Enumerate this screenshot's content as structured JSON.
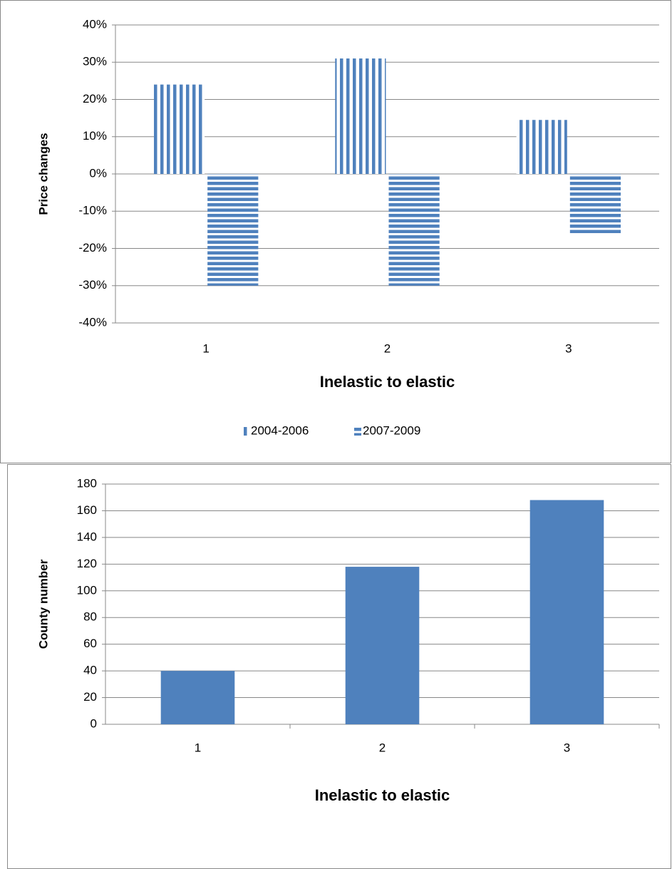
{
  "chart_data": [
    {
      "type": "bar",
      "x_label": "Inelastic to elastic",
      "y_label": "Price changes",
      "categories": [
        "1",
        "2",
        "3"
      ],
      "series": [
        {
          "name": "2004-2006",
          "color": "#4f81bd",
          "pattern": "vertical",
          "values": [
            24,
            31,
            14.5
          ]
        },
        {
          "name": "2007-2009",
          "color": "#4f81bd",
          "pattern": "horizontal",
          "values": [
            -30,
            -30,
            -16
          ]
        }
      ],
      "ylim": [
        -40,
        40
      ],
      "yticks": [
        {
          "value": -40,
          "label": "-40%"
        },
        {
          "value": -30,
          "label": "-30%"
        },
        {
          "value": -20,
          "label": "-20%"
        },
        {
          "value": -10,
          "label": "-10%"
        },
        {
          "value": 0,
          "label": "0%"
        },
        {
          "value": 10,
          "label": "10%"
        },
        {
          "value": 20,
          "label": "20%"
        },
        {
          "value": 30,
          "label": "30%"
        },
        {
          "value": 40,
          "label": "40%"
        }
      ],
      "grid": true,
      "legend": "bottom"
    },
    {
      "type": "bar",
      "x_label": "Inelastic to elastic",
      "y_label": "County number",
      "categories": [
        "1",
        "2",
        "3"
      ],
      "series": [
        {
          "color": "#4f81bd",
          "values": [
            40,
            118,
            168
          ]
        }
      ],
      "ylim": [
        0,
        180
      ],
      "yticks": [
        0,
        20,
        40,
        60,
        80,
        100,
        120,
        140,
        160,
        180
      ],
      "grid": true
    }
  ]
}
